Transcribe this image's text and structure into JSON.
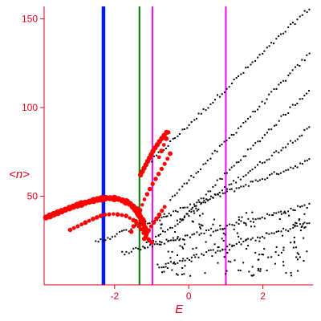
{
  "chart_data": {
    "type": "scatter",
    "title": "",
    "xlabel": "E",
    "ylabel": "<n>",
    "xlim": [
      -3.9,
      3.35
    ],
    "ylim": [
      0,
      157
    ],
    "grid": false,
    "xticks": [
      -2,
      0,
      2
    ],
    "xtick_labels": [
      "-2",
      "0",
      "2"
    ],
    "yticks": [
      50,
      100,
      150
    ],
    "ytick_labels": [
      "50",
      "100",
      "150"
    ],
    "colors": {
      "axis": "#e0001a",
      "black_series": "#000000",
      "red_series": "#ff0000",
      "blue_line": "#0018ff",
      "green_line": "#007a00",
      "magenta_line": "#ff00ff"
    },
    "vertical_lines": [
      {
        "x": -2.3,
        "color": "#0018ff",
        "weight": "thick"
      },
      {
        "x": -1.33,
        "color": "#007a00",
        "weight": "thin"
      },
      {
        "x": -0.98,
        "color": "#ff00ff",
        "weight": "thin"
      },
      {
        "x": 1.0,
        "color": "#ff00ff",
        "weight": "thin"
      }
    ],
    "series": [
      {
        "color": "#000000",
        "marker": "small",
        "bands": [
          {
            "x_start": -1.0,
            "x_end": 3.25,
            "y_start": 70,
            "y_end": 156
          },
          {
            "x_start": -0.5,
            "x_end": 3.25,
            "y_start": 48,
            "y_end": 130
          },
          {
            "x_start": -0.3,
            "x_end": 3.25,
            "y_start": 35,
            "y_end": 110
          },
          {
            "x_start": -1.2,
            "x_end": 3.25,
            "y_start": 22,
            "y_end": 88
          },
          {
            "x_start": -2.5,
            "x_end": 3.25,
            "y_start": 24,
            "y_end": 70
          },
          {
            "x_start": -1.8,
            "x_end": 3.25,
            "y_start": 18,
            "y_end": 45
          },
          {
            "x_start": -0.8,
            "x_end": 3.25,
            "y_start": 10,
            "y_end": 35
          }
        ],
        "cluster": {
          "x_min": -0.9,
          "x_max": 3.25,
          "y_min": 5,
          "y_max": 42,
          "count": 170
        }
      },
      {
        "color": "#ff0000",
        "marker": "large",
        "bands": [
          {
            "points": [
              [
                -3.85,
                38
              ],
              [
                -3.5,
                41
              ],
              [
                -3.0,
                45
              ],
              [
                -2.5,
                48
              ],
              [
                -2.2,
                49
              ],
              [
                -1.9,
                48.5
              ],
              [
                -1.6,
                46
              ],
              [
                -1.4,
                42
              ],
              [
                -1.25,
                36
              ],
              [
                -1.15,
                30
              ]
            ],
            "count": 30
          },
          {
            "points": [
              [
                -3.2,
                31
              ],
              [
                -2.9,
                34
              ],
              [
                -2.6,
                37
              ],
              [
                -2.3,
                39.5
              ],
              [
                -2.0,
                40
              ],
              [
                -1.7,
                39
              ],
              [
                -1.45,
                36
              ],
              [
                -1.3,
                32
              ],
              [
                -1.15,
                27
              ],
              [
                -1.0,
                24
              ]
            ],
            "count": 24
          },
          {
            "points": [
              [
                -1.3,
                62
              ],
              [
                -1.15,
                68
              ],
              [
                -0.95,
                76
              ],
              [
                -0.75,
                82
              ],
              [
                -0.6,
                86
              ]
            ],
            "count": 14
          },
          {
            "points": [
              [
                -1.55,
                30
              ],
              [
                -1.35,
                40
              ],
              [
                -1.2,
                48
              ],
              [
                -1.0,
                56
              ],
              [
                -0.8,
                63
              ],
              [
                -0.6,
                70
              ],
              [
                -0.5,
                74
              ]
            ],
            "count": 16
          },
          {
            "points": [
              [
                -1.2,
                26
              ],
              [
                -1.05,
                32
              ],
              [
                -0.85,
                38
              ],
              [
                -0.65,
                44
              ]
            ],
            "count": 9
          },
          {
            "points": [
              [
                -0.8,
                72
              ],
              [
                -0.65,
                80
              ],
              [
                -0.55,
                86
              ]
            ],
            "count": 5
          }
        ]
      }
    ]
  }
}
